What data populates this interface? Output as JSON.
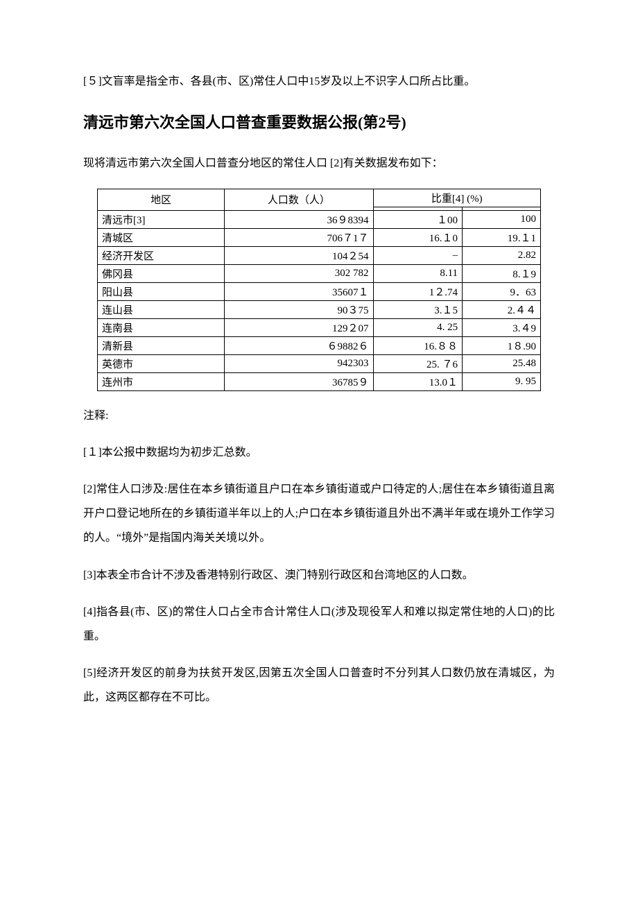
{
  "intro_note": "[５]文盲率是指全市、各县(市、区)常住人口中15岁及以上不识字人口所占比重。",
  "title": "清远市第六次全国人口普查重要数据公报(第2号)",
  "lead": "现将清远市第六次全国人口普查分地区的常住人口 [2]有关数据发布如下：",
  "table": {
    "type": "table",
    "col_region": "地区",
    "col_pop": "人口数（人）",
    "col_pct_group": "比重[4] (%)",
    "rows": [
      {
        "region": "清远市[3]",
        "pop": "36９8394",
        "pct1": "１00",
        "pct2": "100"
      },
      {
        "region": "清城区",
        "pop": "706７1７",
        "pct1": "16.１0",
        "pct2": "19.１1"
      },
      {
        "region": "经济开发区",
        "pop": "104２54",
        "pct1": "–",
        "pct2": "2.82"
      },
      {
        "region": "佛冈县",
        "pop": "302 782",
        "pct1": "8.11",
        "pct2": "8.１9"
      },
      {
        "region": "阳山县",
        "pop": "35607１",
        "pct1": "1２.74",
        "pct2": "9．63"
      },
      {
        "region": "连山县",
        "pop": "90３75",
        "pct1": "3.１5",
        "pct2": "2.４４"
      },
      {
        "region": "连南县",
        "pop": "129２07",
        "pct1": "4. 25",
        "pct2": "3.４9"
      },
      {
        "region": "清新县",
        "pop": "６9882６",
        "pct1": "16.８８",
        "pct2": "1８.90"
      },
      {
        "region": "英德市",
        "pop": "942303",
        "pct1": "25. ７6",
        "pct2": "25.48"
      },
      {
        "region": "连州市",
        "pop": "36785９",
        "pct1": "13.0１",
        "pct2": "9. 95"
      }
    ]
  },
  "notes_heading": "注释:",
  "notes": [
    "[１]本公报中数据均为初步汇总数。",
    "[2]常住人口涉及:居住在本乡镇街道且户口在本乡镇街道或户口待定的人;居住在本乡镇街道且离开户口登记地所在的乡镇街道半年以上的人;户口在本乡镇街道且外出不满半年或在境外工作学习的人。“境外”是指国内海关关境以外。",
    "[3]本表全市合计不涉及香港特别行政区、澳门特别行政区和台湾地区的人口数。",
    "[4]指各县(市、区)的常住人口占全市合计常住人口(涉及现役军人和难以拟定常住地的人口)的比重。",
    " [5]经济开发区的前身为扶贫开发区,因第五次全国人口普查时不分列其人口数仍放在清城区，为此，这两区都存在不可比。"
  ]
}
